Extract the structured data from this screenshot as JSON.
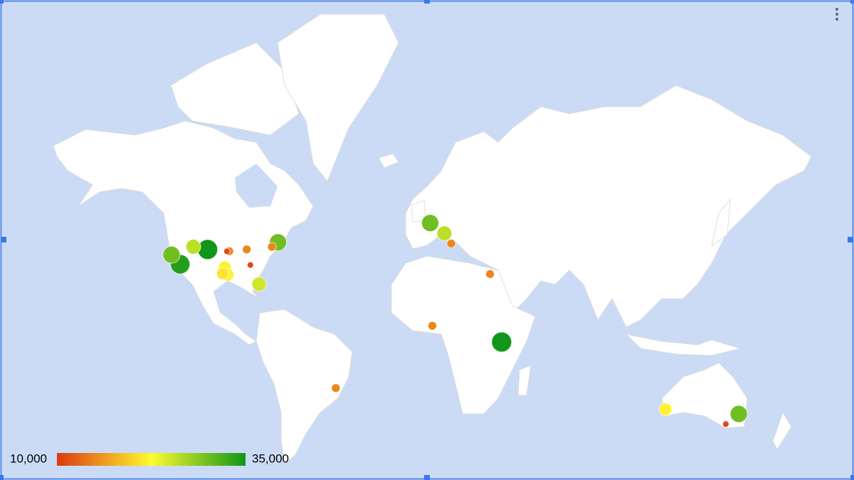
{
  "map_data": {
    "color_axis": {
      "colors": [
        "#dc3912",
        "#fffb2e",
        "#109618"
      ],
      "legend": [
        {
          "value": 10000,
          "label": "10,000"
        },
        {
          "value": 35000,
          "label": "35,000"
        }
      ]
    },
    "markers": [
      {
        "lat": 37.77,
        "lon": -122.42,
        "value": 30000
      },
      {
        "lat": 34.05,
        "lon": -118.24,
        "value": 34000
      },
      {
        "lat": 40.76,
        "lon": -111.89,
        "value": 26000
      },
      {
        "lat": 39.74,
        "lon": -104.99,
        "value": 35000
      },
      {
        "lat": 39.05,
        "lon": -95.68,
        "value": 11000
      },
      {
        "lat": 39.1,
        "lon": -94.58,
        "value": 15000
      },
      {
        "lat": 39.77,
        "lon": -86.16,
        "value": 15000
      },
      {
        "lat": 33.75,
        "lon": -84.39,
        "value": 11000
      },
      {
        "lat": 32.78,
        "lon": -96.8,
        "value": 22000
      },
      {
        "lat": 30.27,
        "lon": -97.74,
        "value": 21000
      },
      {
        "lat": 29.76,
        "lon": -95.37,
        "value": 22000
      },
      {
        "lat": 25.76,
        "lon": -80.19,
        "value": 25000
      },
      {
        "lat": 40.71,
        "lon": -74.01,
        "value": 15000
      },
      {
        "lat": 42.36,
        "lon": -71.06,
        "value": 30000
      },
      {
        "lat": 48.86,
        "lon": 2.35,
        "value": 30000
      },
      {
        "lat": 45.46,
        "lon": 9.19,
        "value": 26000
      },
      {
        "lat": 41.9,
        "lon": 12.5,
        "value": 15000
      },
      {
        "lat": 30.04,
        "lon": 31.24,
        "value": 15000
      },
      {
        "lat": 6.52,
        "lon": 3.38,
        "value": 15000
      },
      {
        "lat": -1.29,
        "lon": 36.82,
        "value": 35000
      },
      {
        "lat": -22.91,
        "lon": -43.17,
        "value": 15000
      },
      {
        "lat": -31.95,
        "lon": 115.86,
        "value": 22000
      },
      {
        "lat": -33.87,
        "lon": 151.21,
        "value": 30000
      },
      {
        "lat": -37.81,
        "lon": 144.96,
        "value": 11000
      }
    ]
  }
}
